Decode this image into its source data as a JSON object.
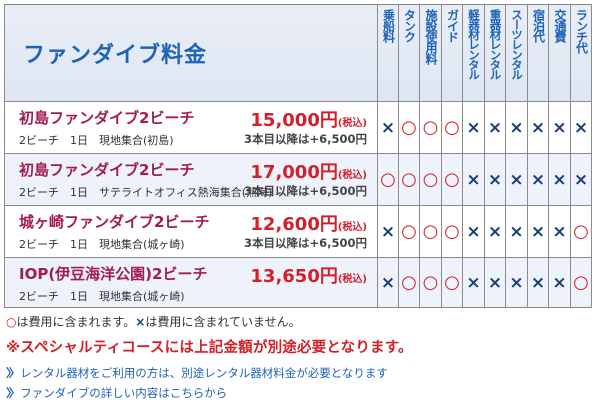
{
  "table": {
    "title": "ファンダイブ料金",
    "columns": [
      "乗船料",
      "タンク",
      "施設使用料",
      "ガイド",
      "軽器材レンタル",
      "重器材レンタル",
      "スーツレンタル",
      "宿泊代",
      "交通費",
      "ランチ代"
    ],
    "rows": [
      {
        "name": "初島ファンダイブ2ビーチ",
        "detail": "2ビーチ　1日　現地集合(初島)",
        "price": "15,000円",
        "tax": "(税込)",
        "extra": "3本目以降は+6,500円",
        "marks": [
          "×",
          "○",
          "○",
          "○",
          "×",
          "×",
          "×",
          "×",
          "×",
          "×"
        ]
      },
      {
        "name": "初島ファンダイブ2ビーチ",
        "detail": "2ビーチ　1日　サテライトオフィス熱海集合(熱海)",
        "price": "17,000円",
        "tax": "(税込)",
        "extra": "3本目以降は+6,500円",
        "marks": [
          "○",
          "○",
          "○",
          "○",
          "×",
          "×",
          "×",
          "×",
          "×",
          "×"
        ]
      },
      {
        "name": "城ヶ崎ファンダイブ2ビーチ",
        "detail": "2ビーチ　1日　現地集合(城ヶ崎)",
        "price": "12,600円",
        "tax": "(税込)",
        "extra": "3本目以降は+6,500円",
        "marks": [
          "×",
          "○",
          "○",
          "○",
          "×",
          "×",
          "×",
          "×",
          "×",
          "○"
        ]
      },
      {
        "name": "IOP(伊豆海洋公園)2ビーチ",
        "detail": "2ビーチ　1日　現地集合(城ヶ崎)",
        "price": "13,650円",
        "tax": "(税込)",
        "extra": "",
        "marks": [
          "×",
          "○",
          "○",
          "○",
          "×",
          "×",
          "×",
          "×",
          "×",
          "○"
        ]
      }
    ]
  },
  "notes": {
    "legend_o_symbol": "○",
    "legend_o_text": "は費用に含まれます。",
    "legend_x_symbol": "×",
    "legend_x_text": "は費用に含まれていません。",
    "special": "※スペシャルティコースには上記金額が別途必要となります。"
  },
  "links": {
    "chevron": "〉〉",
    "rental": "レンタル器材をご利用の方は、別途レンタル器材料金が必要となります",
    "details": "ファンダイブの詳しい内容はこちらから"
  },
  "colors": {
    "brand_blue": "#1f63b6",
    "course_name": "#a21c52",
    "price_red": "#d2202b",
    "circle_red": "#d2202b",
    "cross_navy": "#1a3f78",
    "header_bg": "#e2e8f4"
  }
}
